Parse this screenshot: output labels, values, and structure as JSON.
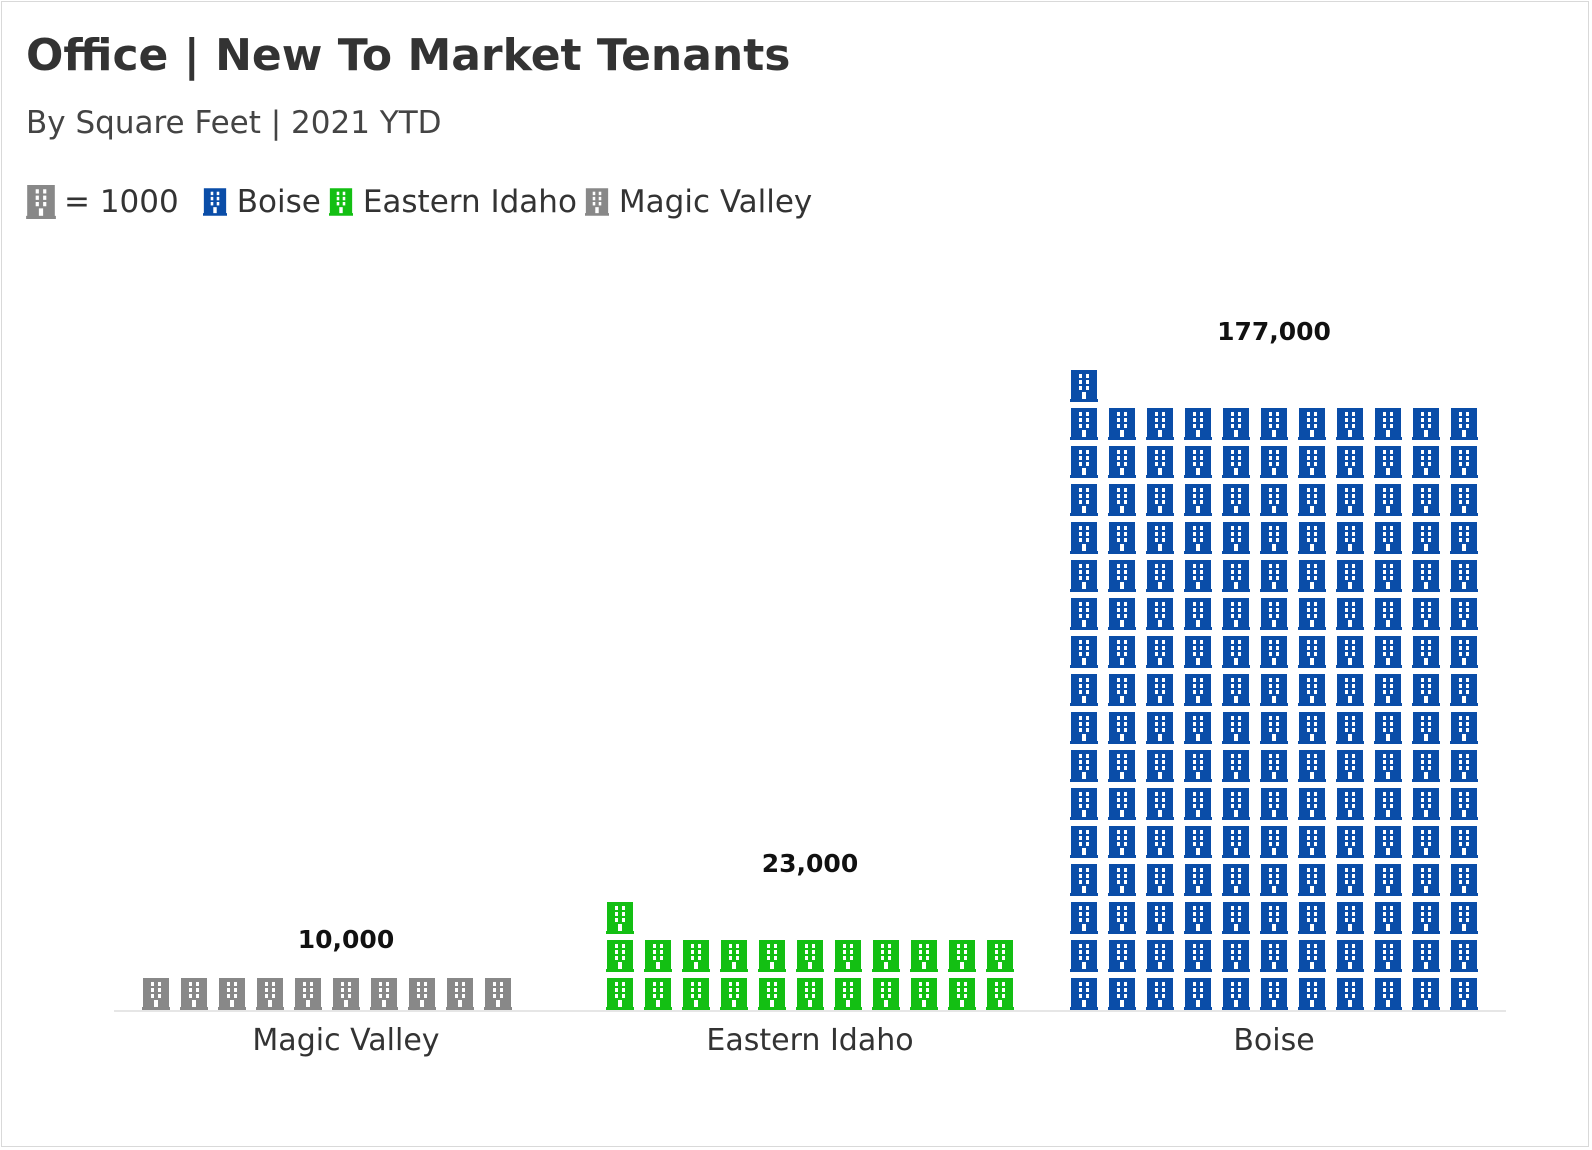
{
  "header": {
    "title": "Office | New To Market Tenants",
    "subtitle": "By Square Feet | 2021 YTD"
  },
  "legend": {
    "unit_label": "= 1000",
    "unit_icon": "building-icon",
    "entries": [
      {
        "label": "Boise",
        "color": "#0a4da8"
      },
      {
        "label": "Eastern Idaho",
        "color": "#13bf13"
      },
      {
        "label": "Magic Valley",
        "color": "#888888"
      }
    ],
    "unit_color": "#888888"
  },
  "chart_data": {
    "type": "bar",
    "style": "pictograph",
    "icon": "building-icon",
    "unit_value": 1000,
    "columns": 11,
    "categories": [
      "Magic Valley",
      "Eastern Idaho",
      "Boise"
    ],
    "values": [
      10000,
      23000,
      177000
    ],
    "value_labels": [
      "10,000",
      "23,000",
      "177,000"
    ],
    "colors": [
      "#888888",
      "#13bf13",
      "#0a4da8"
    ],
    "title": "Office | New To Market Tenants",
    "subtitle": "By Square Feet | 2021 YTD",
    "grid": false,
    "legend_position": "top-left"
  }
}
